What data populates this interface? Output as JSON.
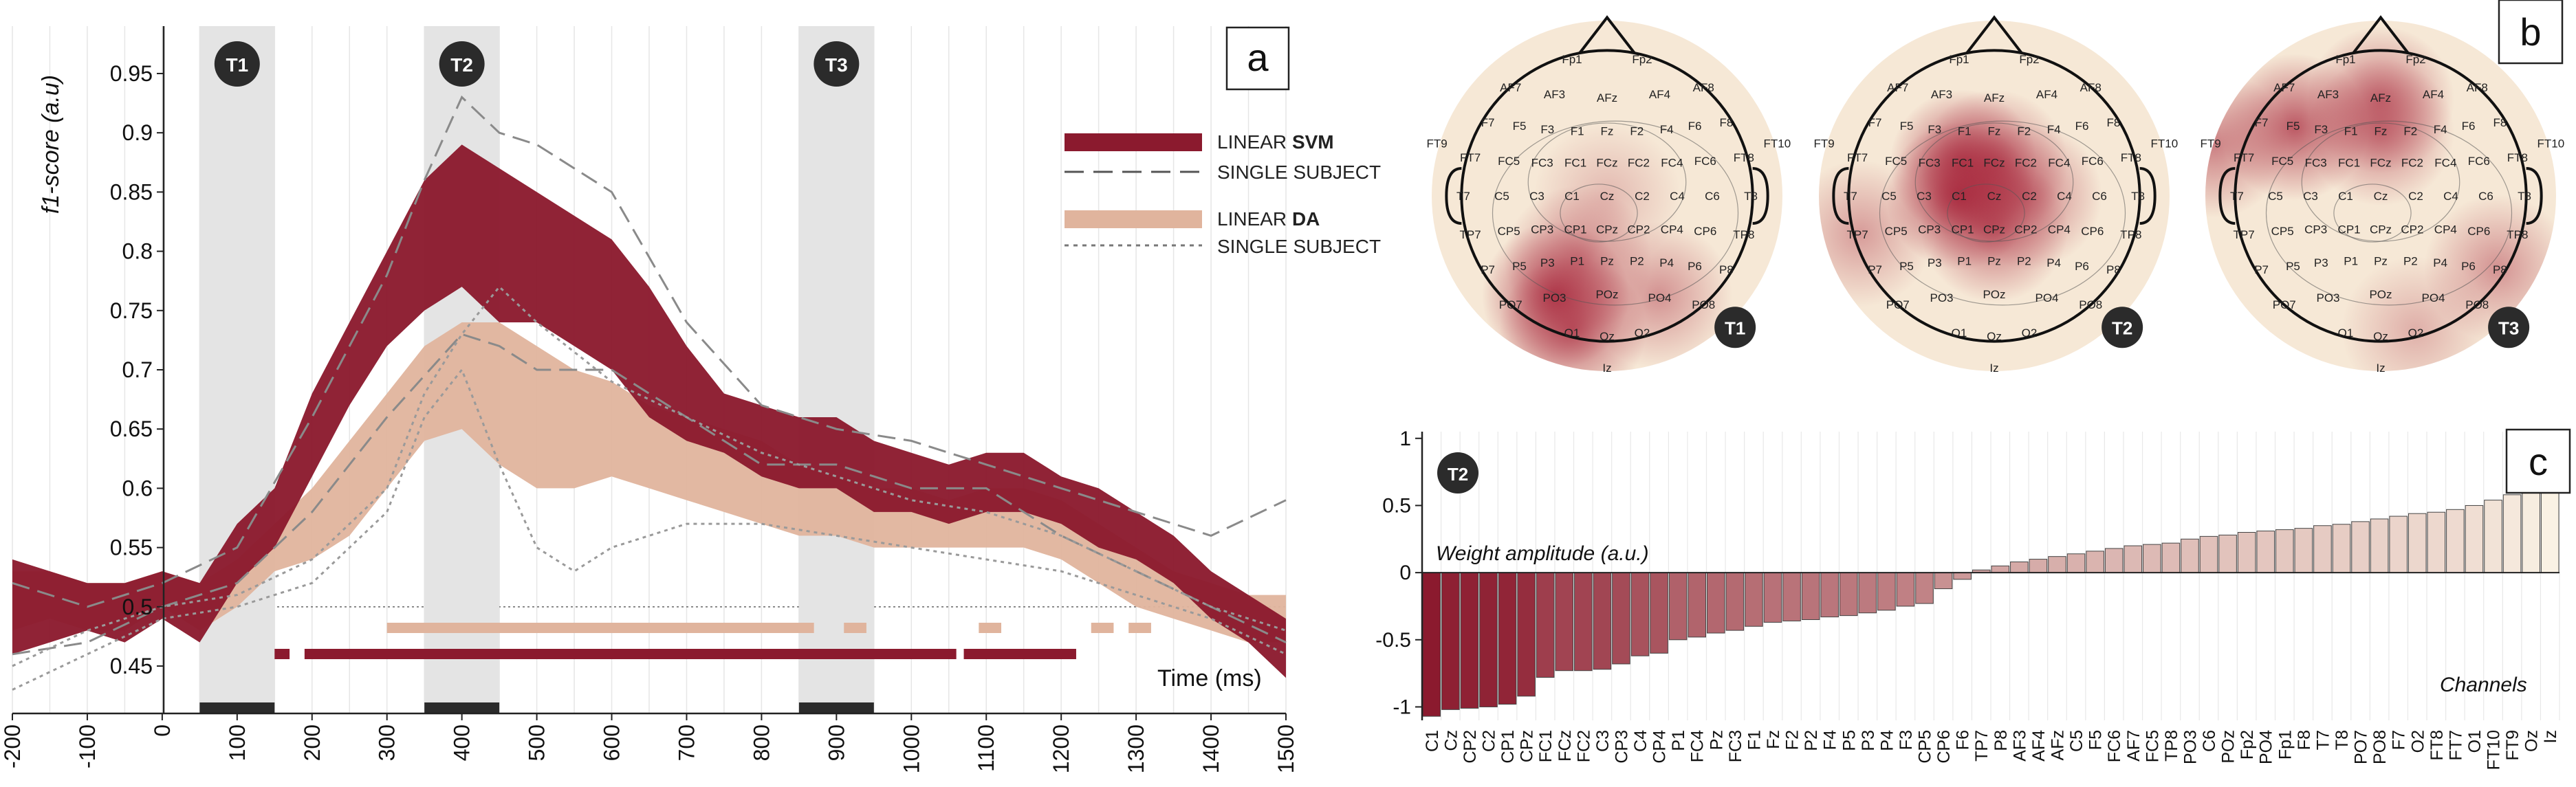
{
  "panel_letters": {
    "a": "a",
    "b": "b",
    "c": "c"
  },
  "colors": {
    "svm": "#8b1a2e",
    "lda": "#e0b49d",
    "window": "#e4e4e4",
    "marker": "#2b2b2b",
    "topo_hot": "#a8283d",
    "topo_base": "#f6e8d6"
  },
  "chart_data": [
    {
      "id": "panel-a",
      "type": "area",
      "ylabel": "f1-score (a.u)",
      "xlabel": "Time (ms)",
      "xlim": [
        -200,
        1500
      ],
      "ylim": [
        0.41,
        0.99
      ],
      "x_ticks": [
        -200,
        -100,
        0,
        100,
        200,
        300,
        400,
        500,
        600,
        700,
        800,
        900,
        1000,
        1100,
        1200,
        1300,
        1400,
        1500
      ],
      "y_ticks": [
        0.45,
        0.5,
        0.55,
        0.6,
        0.65,
        0.7,
        0.75,
        0.8,
        0.85,
        0.9,
        0.95
      ],
      "y_tick_labels": [
        "0.45",
        "0.5",
        "0.55",
        "0.6",
        "0.65",
        "0.7",
        "0.75",
        "0.8",
        "0.85",
        "0.9",
        "0.95"
      ],
      "chance_level": 0.5,
      "grid": "vertical",
      "windows": [
        {
          "label": "T1",
          "start": 50,
          "end": 150
        },
        {
          "label": "T2",
          "start": 350,
          "end": 450
        },
        {
          "label": "T3",
          "start": 850,
          "end": 950
        }
      ],
      "legend": [
        {
          "label_plain": "LINEAR ",
          "label_bold": "SVM",
          "style": "band",
          "series": "svm"
        },
        {
          "label_plain": "SINGLE SUBJECT",
          "label_bold": "",
          "style": "dashed"
        },
        {
          "label_plain": "LINEAR ",
          "label_bold": "DA",
          "style": "band",
          "series": "lda"
        },
        {
          "label_plain": "SINGLE SUBJECT",
          "label_bold": "",
          "style": "dotted"
        }
      ],
      "series": [
        {
          "name": "LINEAR SVM",
          "x": [
            -200,
            -150,
            -100,
            -50,
            0,
            50,
            100,
            150,
            200,
            250,
            300,
            350,
            400,
            450,
            500,
            550,
            600,
            650,
            700,
            750,
            800,
            850,
            900,
            950,
            1000,
            1050,
            1100,
            1150,
            1200,
            1250,
            1300,
            1350,
            1400,
            1450,
            1500
          ],
          "lower": [
            0.46,
            0.47,
            0.48,
            0.47,
            0.49,
            0.47,
            0.52,
            0.55,
            0.61,
            0.67,
            0.72,
            0.75,
            0.77,
            0.74,
            0.74,
            0.72,
            0.7,
            0.66,
            0.64,
            0.63,
            0.61,
            0.6,
            0.6,
            0.58,
            0.58,
            0.57,
            0.58,
            0.58,
            0.57,
            0.55,
            0.54,
            0.52,
            0.49,
            0.47,
            0.44
          ],
          "upper": [
            0.54,
            0.53,
            0.52,
            0.52,
            0.53,
            0.52,
            0.57,
            0.6,
            0.68,
            0.74,
            0.8,
            0.86,
            0.89,
            0.87,
            0.85,
            0.83,
            0.81,
            0.77,
            0.72,
            0.68,
            0.67,
            0.66,
            0.66,
            0.64,
            0.63,
            0.62,
            0.63,
            0.63,
            0.61,
            0.6,
            0.58,
            0.56,
            0.53,
            0.51,
            0.49
          ]
        },
        {
          "name": "LINEAR DA",
          "x": [
            -200,
            -150,
            -100,
            -50,
            0,
            50,
            100,
            150,
            200,
            250,
            300,
            350,
            400,
            450,
            500,
            550,
            600,
            650,
            700,
            750,
            800,
            850,
            900,
            950,
            1000,
            1050,
            1100,
            1150,
            1200,
            1250,
            1300,
            1350,
            1400,
            1450,
            1500
          ],
          "lower": [
            0.48,
            0.49,
            0.48,
            0.48,
            0.5,
            0.48,
            0.5,
            0.53,
            0.54,
            0.56,
            0.6,
            0.64,
            0.65,
            0.62,
            0.6,
            0.6,
            0.61,
            0.6,
            0.59,
            0.58,
            0.57,
            0.56,
            0.56,
            0.55,
            0.55,
            0.55,
            0.55,
            0.55,
            0.54,
            0.52,
            0.5,
            0.49,
            0.48,
            0.47,
            0.47
          ],
          "upper": [
            0.53,
            0.53,
            0.52,
            0.52,
            0.53,
            0.52,
            0.54,
            0.57,
            0.6,
            0.64,
            0.68,
            0.72,
            0.74,
            0.74,
            0.72,
            0.7,
            0.69,
            0.67,
            0.66,
            0.65,
            0.64,
            0.62,
            0.61,
            0.6,
            0.6,
            0.59,
            0.6,
            0.6,
            0.59,
            0.57,
            0.55,
            0.53,
            0.52,
            0.51,
            0.51
          ]
        },
        {
          "name": "svm single subject",
          "style": "dashed",
          "x": [
            -200,
            -100,
            0,
            100,
            200,
            300,
            350,
            400,
            450,
            500,
            600,
            700,
            800,
            900,
            1000,
            1100,
            1200,
            1300,
            1400,
            1500
          ],
          "y": [
            0.52,
            0.5,
            0.52,
            0.55,
            0.66,
            0.78,
            0.86,
            0.93,
            0.9,
            0.89,
            0.85,
            0.74,
            0.67,
            0.65,
            0.64,
            0.62,
            0.6,
            0.58,
            0.56,
            0.59
          ]
        },
        {
          "name": "svm single subject 2",
          "style": "dashed",
          "x": [
            -200,
            -100,
            0,
            100,
            200,
            300,
            400,
            450,
            500,
            600,
            700,
            800,
            900,
            1000,
            1100,
            1200,
            1300,
            1400,
            1500
          ],
          "y": [
            0.46,
            0.47,
            0.5,
            0.52,
            0.58,
            0.66,
            0.73,
            0.72,
            0.7,
            0.7,
            0.66,
            0.62,
            0.62,
            0.6,
            0.6,
            0.56,
            0.53,
            0.5,
            0.47
          ]
        },
        {
          "name": "lda single subject",
          "style": "dotted",
          "x": [
            -200,
            -100,
            0,
            100,
            200,
            300,
            350,
            400,
            450,
            500,
            600,
            700,
            800,
            900,
            1000,
            1100,
            1200,
            1300,
            1400,
            1500
          ],
          "y": [
            0.45,
            0.48,
            0.5,
            0.51,
            0.54,
            0.6,
            0.68,
            0.73,
            0.77,
            0.74,
            0.69,
            0.66,
            0.63,
            0.61,
            0.59,
            0.58,
            0.56,
            0.53,
            0.5,
            0.48
          ]
        },
        {
          "name": "lda single subject 2",
          "style": "dotted",
          "x": [
            -200,
            -100,
            0,
            100,
            200,
            300,
            350,
            400,
            450,
            500,
            550,
            600,
            700,
            800,
            900,
            1000,
            1100,
            1200,
            1300,
            1400,
            1500
          ],
          "y": [
            0.43,
            0.46,
            0.49,
            0.5,
            0.52,
            0.58,
            0.66,
            0.7,
            0.62,
            0.55,
            0.53,
            0.55,
            0.57,
            0.57,
            0.56,
            0.55,
            0.54,
            0.53,
            0.51,
            0.49,
            0.46
          ]
        }
      ],
      "significance_bars": {
        "lda": [
          [
            300,
            870
          ],
          [
            910,
            940
          ],
          [
            1090,
            1120
          ],
          [
            1240,
            1270
          ],
          [
            1290,
            1320
          ]
        ],
        "svm": [
          [
            150,
            170
          ],
          [
            190,
            1060
          ],
          [
            1070,
            1220
          ]
        ]
      }
    },
    {
      "id": "panel-b",
      "type": "heatmap",
      "maps": [
        {
          "label": "T1",
          "hotspots": [
            {
              "electrode": "PO3",
              "strength": 0.85
            },
            {
              "electrode": "O1",
              "strength": 0.7
            },
            {
              "electrode": "P1",
              "strength": 0.5
            },
            {
              "electrode": "PO4",
              "strength": 0.45
            },
            {
              "electrode": "Cz",
              "strength": 0.25
            }
          ]
        },
        {
          "label": "T2",
          "hotspots": [
            {
              "electrode": "C1",
              "strength": 0.9
            },
            {
              "electrode": "FC1",
              "strength": 0.8
            },
            {
              "electrode": "CPz",
              "strength": 0.65
            },
            {
              "electrode": "FCz",
              "strength": 0.6
            },
            {
              "electrode": "C2",
              "strength": 0.55
            },
            {
              "electrode": "TP7",
              "strength": 0.4
            }
          ]
        },
        {
          "label": "T3",
          "hotspots": [
            {
              "electrode": "F5",
              "strength": 0.75
            },
            {
              "electrode": "AFz",
              "strength": 0.6
            },
            {
              "electrode": "Fz",
              "strength": 0.55
            },
            {
              "electrode": "FT9",
              "strength": 0.55
            },
            {
              "electrode": "P8",
              "strength": 0.45
            },
            {
              "electrode": "O2",
              "strength": 0.3
            }
          ]
        }
      ],
      "electrodes": [
        {
          "n": "Fp1",
          "x": -0.2,
          "y": -0.78
        },
        {
          "n": "Fp2",
          "x": 0.2,
          "y": -0.78
        },
        {
          "n": "AF7",
          "x": -0.55,
          "y": -0.62
        },
        {
          "n": "AF3",
          "x": -0.3,
          "y": -0.58
        },
        {
          "n": "AFz",
          "x": 0.0,
          "y": -0.56
        },
        {
          "n": "AF4",
          "x": 0.3,
          "y": -0.58
        },
        {
          "n": "AF8",
          "x": 0.55,
          "y": -0.62
        },
        {
          "n": "F7",
          "x": -0.68,
          "y": -0.42
        },
        {
          "n": "F5",
          "x": -0.5,
          "y": -0.4
        },
        {
          "n": "F3",
          "x": -0.34,
          "y": -0.38
        },
        {
          "n": "F1",
          "x": -0.17,
          "y": -0.37
        },
        {
          "n": "Fz",
          "x": 0.0,
          "y": -0.37
        },
        {
          "n": "F2",
          "x": 0.17,
          "y": -0.37
        },
        {
          "n": "F4",
          "x": 0.34,
          "y": -0.38
        },
        {
          "n": "F6",
          "x": 0.5,
          "y": -0.4
        },
        {
          "n": "F8",
          "x": 0.68,
          "y": -0.42
        },
        {
          "n": "FT9",
          "x": -0.97,
          "y": -0.3
        },
        {
          "n": "FT7",
          "x": -0.78,
          "y": -0.22
        },
        {
          "n": "FC5",
          "x": -0.56,
          "y": -0.2
        },
        {
          "n": "FC3",
          "x": -0.37,
          "y": -0.19
        },
        {
          "n": "FC1",
          "x": -0.18,
          "y": -0.19
        },
        {
          "n": "FCz",
          "x": 0.0,
          "y": -0.19
        },
        {
          "n": "FC2",
          "x": 0.18,
          "y": -0.19
        },
        {
          "n": "FC4",
          "x": 0.37,
          "y": -0.19
        },
        {
          "n": "FC6",
          "x": 0.56,
          "y": -0.2
        },
        {
          "n": "FT8",
          "x": 0.78,
          "y": -0.22
        },
        {
          "n": "FT10",
          "x": 0.97,
          "y": -0.3
        },
        {
          "n": "T7",
          "x": -0.82,
          "y": 0.0
        },
        {
          "n": "C5",
          "x": -0.6,
          "y": 0.0
        },
        {
          "n": "C3",
          "x": -0.4,
          "y": 0.0
        },
        {
          "n": "C1",
          "x": -0.2,
          "y": 0.0
        },
        {
          "n": "Cz",
          "x": 0.0,
          "y": 0.0
        },
        {
          "n": "C2",
          "x": 0.2,
          "y": 0.0
        },
        {
          "n": "C4",
          "x": 0.4,
          "y": 0.0
        },
        {
          "n": "C6",
          "x": 0.6,
          "y": 0.0
        },
        {
          "n": "T8",
          "x": 0.82,
          "y": 0.0
        },
        {
          "n": "TP7",
          "x": -0.78,
          "y": 0.22
        },
        {
          "n": "CP5",
          "x": -0.56,
          "y": 0.2
        },
        {
          "n": "CP3",
          "x": -0.37,
          "y": 0.19
        },
        {
          "n": "CP1",
          "x": -0.18,
          "y": 0.19
        },
        {
          "n": "CPz",
          "x": 0.0,
          "y": 0.19
        },
        {
          "n": "CP2",
          "x": 0.18,
          "y": 0.19
        },
        {
          "n": "CP4",
          "x": 0.37,
          "y": 0.19
        },
        {
          "n": "CP6",
          "x": 0.56,
          "y": 0.2
        },
        {
          "n": "TP8",
          "x": 0.78,
          "y": 0.22
        },
        {
          "n": "P7",
          "x": -0.68,
          "y": 0.42
        },
        {
          "n": "P5",
          "x": -0.5,
          "y": 0.4
        },
        {
          "n": "P3",
          "x": -0.34,
          "y": 0.38
        },
        {
          "n": "P1",
          "x": -0.17,
          "y": 0.37
        },
        {
          "n": "Pz",
          "x": 0.0,
          "y": 0.37
        },
        {
          "n": "P2",
          "x": 0.17,
          "y": 0.37
        },
        {
          "n": "P4",
          "x": 0.34,
          "y": 0.38
        },
        {
          "n": "P6",
          "x": 0.5,
          "y": 0.4
        },
        {
          "n": "P8",
          "x": 0.68,
          "y": 0.42
        },
        {
          "n": "PO7",
          "x": -0.55,
          "y": 0.62
        },
        {
          "n": "PO3",
          "x": -0.3,
          "y": 0.58
        },
        {
          "n": "POz",
          "x": 0.0,
          "y": 0.56
        },
        {
          "n": "PO4",
          "x": 0.3,
          "y": 0.58
        },
        {
          "n": "PO8",
          "x": 0.55,
          "y": 0.62
        },
        {
          "n": "O1",
          "x": -0.2,
          "y": 0.78
        },
        {
          "n": "Oz",
          "x": 0.0,
          "y": 0.8
        },
        {
          "n": "O2",
          "x": 0.2,
          "y": 0.78
        },
        {
          "n": "Iz",
          "x": 0.0,
          "y": 0.98
        }
      ]
    },
    {
      "id": "panel-c",
      "type": "bar",
      "badge": "T2",
      "ylabel": "Weight amplitude (a.u.)",
      "xlabel": "Channels",
      "ylim": [
        -1.1,
        1.05
      ],
      "y_ticks": [
        -1,
        -0.5,
        0,
        0.5,
        1
      ],
      "y_tick_labels": [
        "-1",
        "-0.5",
        "0",
        "0.5",
        "1"
      ],
      "categories": [
        "C1",
        "Cz",
        "CP2",
        "C2",
        "CP1",
        "CPz",
        "FC1",
        "FCz",
        "FC2",
        "C3",
        "CP3",
        "C4",
        "CP4",
        "P1",
        "FC4",
        "Pz",
        "FC3",
        "F1",
        "Fz",
        "F2",
        "P2",
        "F4",
        "P5",
        "P3",
        "P4",
        "F3",
        "CP5",
        "CP6",
        "F6",
        "TP7",
        "P8",
        "AF3",
        "AF4",
        "AFz",
        "C5",
        "F5",
        "FC6",
        "AF7",
        "FC5",
        "TP8",
        "PO3",
        "C6",
        "POz",
        "Fp2",
        "PO4",
        "Fp1",
        "F8",
        "T7",
        "T8",
        "PO7",
        "PO8",
        "F7",
        "O2",
        "FT8",
        "FT7",
        "O1",
        "FT10",
        "FT9",
        "Oz",
        "Iz"
      ],
      "values": [
        -1.07,
        -1.02,
        -1.01,
        -1.0,
        -0.98,
        -0.92,
        -0.78,
        -0.73,
        -0.73,
        -0.72,
        -0.68,
        -0.62,
        -0.6,
        -0.5,
        -0.48,
        -0.45,
        -0.43,
        -0.4,
        -0.37,
        -0.36,
        -0.35,
        -0.33,
        -0.32,
        -0.3,
        -0.28,
        -0.25,
        -0.23,
        -0.12,
        -0.05,
        0.02,
        0.05,
        0.08,
        0.1,
        0.12,
        0.14,
        0.16,
        0.18,
        0.2,
        0.21,
        0.22,
        0.25,
        0.27,
        0.28,
        0.3,
        0.31,
        0.32,
        0.33,
        0.35,
        0.36,
        0.38,
        0.4,
        0.42,
        0.44,
        0.45,
        0.47,
        0.5,
        0.54,
        0.58,
        0.62,
        0.66
      ]
    }
  ]
}
